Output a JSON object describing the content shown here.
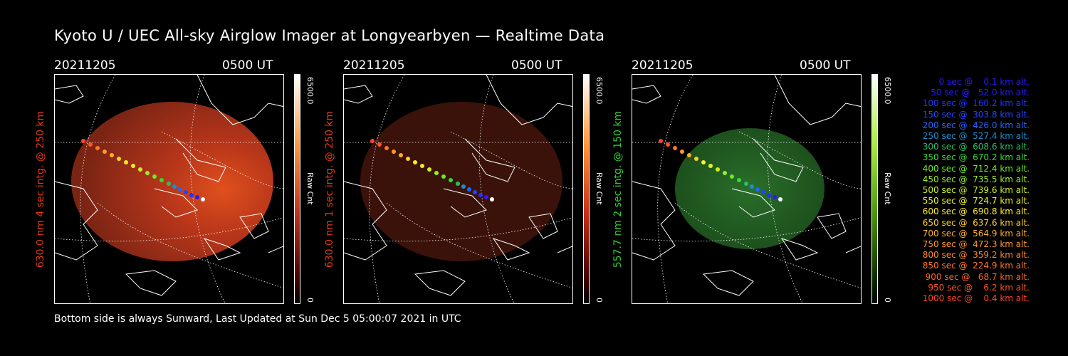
{
  "title": "Kyoto U / UEC All-sky Airglow Imager at Longyearbyen — Realtime Data",
  "footer": "Bottom side is always Sunward, Last Updated at Sun Dec  5 05:00:07 2021 in UTC",
  "colorbar": {
    "max_label": "6500.0",
    "min_label": "0",
    "unit_label": "Raw Cnt"
  },
  "panels": [
    {
      "date": "20211205",
      "time": "0500 UT",
      "side_label": "630.0 nm 4 sec intg. @ 250 km",
      "side_color": "#e03a1a",
      "glow_color": "#c8321a",
      "glow_intensity": 0.85,
      "cbar_top": "#ffffff",
      "cbar_mid": "#ff7a1a",
      "cbar_bottom": "#000000"
    },
    {
      "date": "20211205",
      "time": "0500 UT",
      "side_label": "630.0 nm 1 sec intg. @ 250 km",
      "side_color": "#e03a1a",
      "glow_color": "#3a120a",
      "glow_intensity": 0.55,
      "cbar_top": "#ffffff",
      "cbar_mid": "#ff7a1a",
      "cbar_bottom": "#000000"
    },
    {
      "date": "20211205",
      "time": "0500 UT",
      "side_label": "557.7 nm 2 sec intg. @ 150 km",
      "side_color": "#33cc33",
      "glow_color": "#1e5c1e",
      "glow_intensity": 0.75,
      "cbar_top": "#ffffff",
      "cbar_mid": "#66cc00",
      "cbar_bottom": "#000000"
    }
  ],
  "trajectory_legend": [
    {
      "text": "   0 sec @    0.1 km alt.",
      "color": "#2a1aff"
    },
    {
      "text": "  50 sec @   52.0 km alt.",
      "color": "#2a1aff"
    },
    {
      "text": " 100 sec @  160.2 km alt.",
      "color": "#2233ff"
    },
    {
      "text": " 150 sec @  303.8 km alt.",
      "color": "#2244ff"
    },
    {
      "text": " 200 sec @  426.0 km alt.",
      "color": "#2266ff"
    },
    {
      "text": " 250 sec @  527.4 km alt.",
      "color": "#1a8fd0"
    },
    {
      "text": " 300 sec @  608.6 km alt.",
      "color": "#22c066"
    },
    {
      "text": " 350 sec @  670.2 km alt.",
      "color": "#33dd33"
    },
    {
      "text": " 400 sec @  712.4 km alt.",
      "color": "#66ee22"
    },
    {
      "text": " 450 sec @  735.5 km alt.",
      "color": "#99ee22"
    },
    {
      "text": " 500 sec @  739.6 km alt.",
      "color": "#ccee22"
    },
    {
      "text": " 550 sec @  724.7 km alt.",
      "color": "#eeee22"
    },
    {
      "text": " 600 sec @  690.8 km alt.",
      "color": "#ffee22"
    },
    {
      "text": " 650 sec @  637.6 km alt.",
      "color": "#ffd022"
    },
    {
      "text": " 700 sec @  564.9 km alt.",
      "color": "#ffb022"
    },
    {
      "text": " 750 sec @  472.3 km alt.",
      "color": "#ff9a22"
    },
    {
      "text": " 800 sec @  359.2 km alt.",
      "color": "#ff8822"
    },
    {
      "text": " 850 sec @  224.9 km alt.",
      "color": "#ff7722"
    },
    {
      "text": " 900 sec @   68.7 km alt.",
      "color": "#ff6622"
    },
    {
      "text": " 950 sec @    6.2 km alt.",
      "color": "#ff5522"
    },
    {
      "text": "1000 sec @    0.4 km alt.",
      "color": "#ff4422"
    }
  ]
}
